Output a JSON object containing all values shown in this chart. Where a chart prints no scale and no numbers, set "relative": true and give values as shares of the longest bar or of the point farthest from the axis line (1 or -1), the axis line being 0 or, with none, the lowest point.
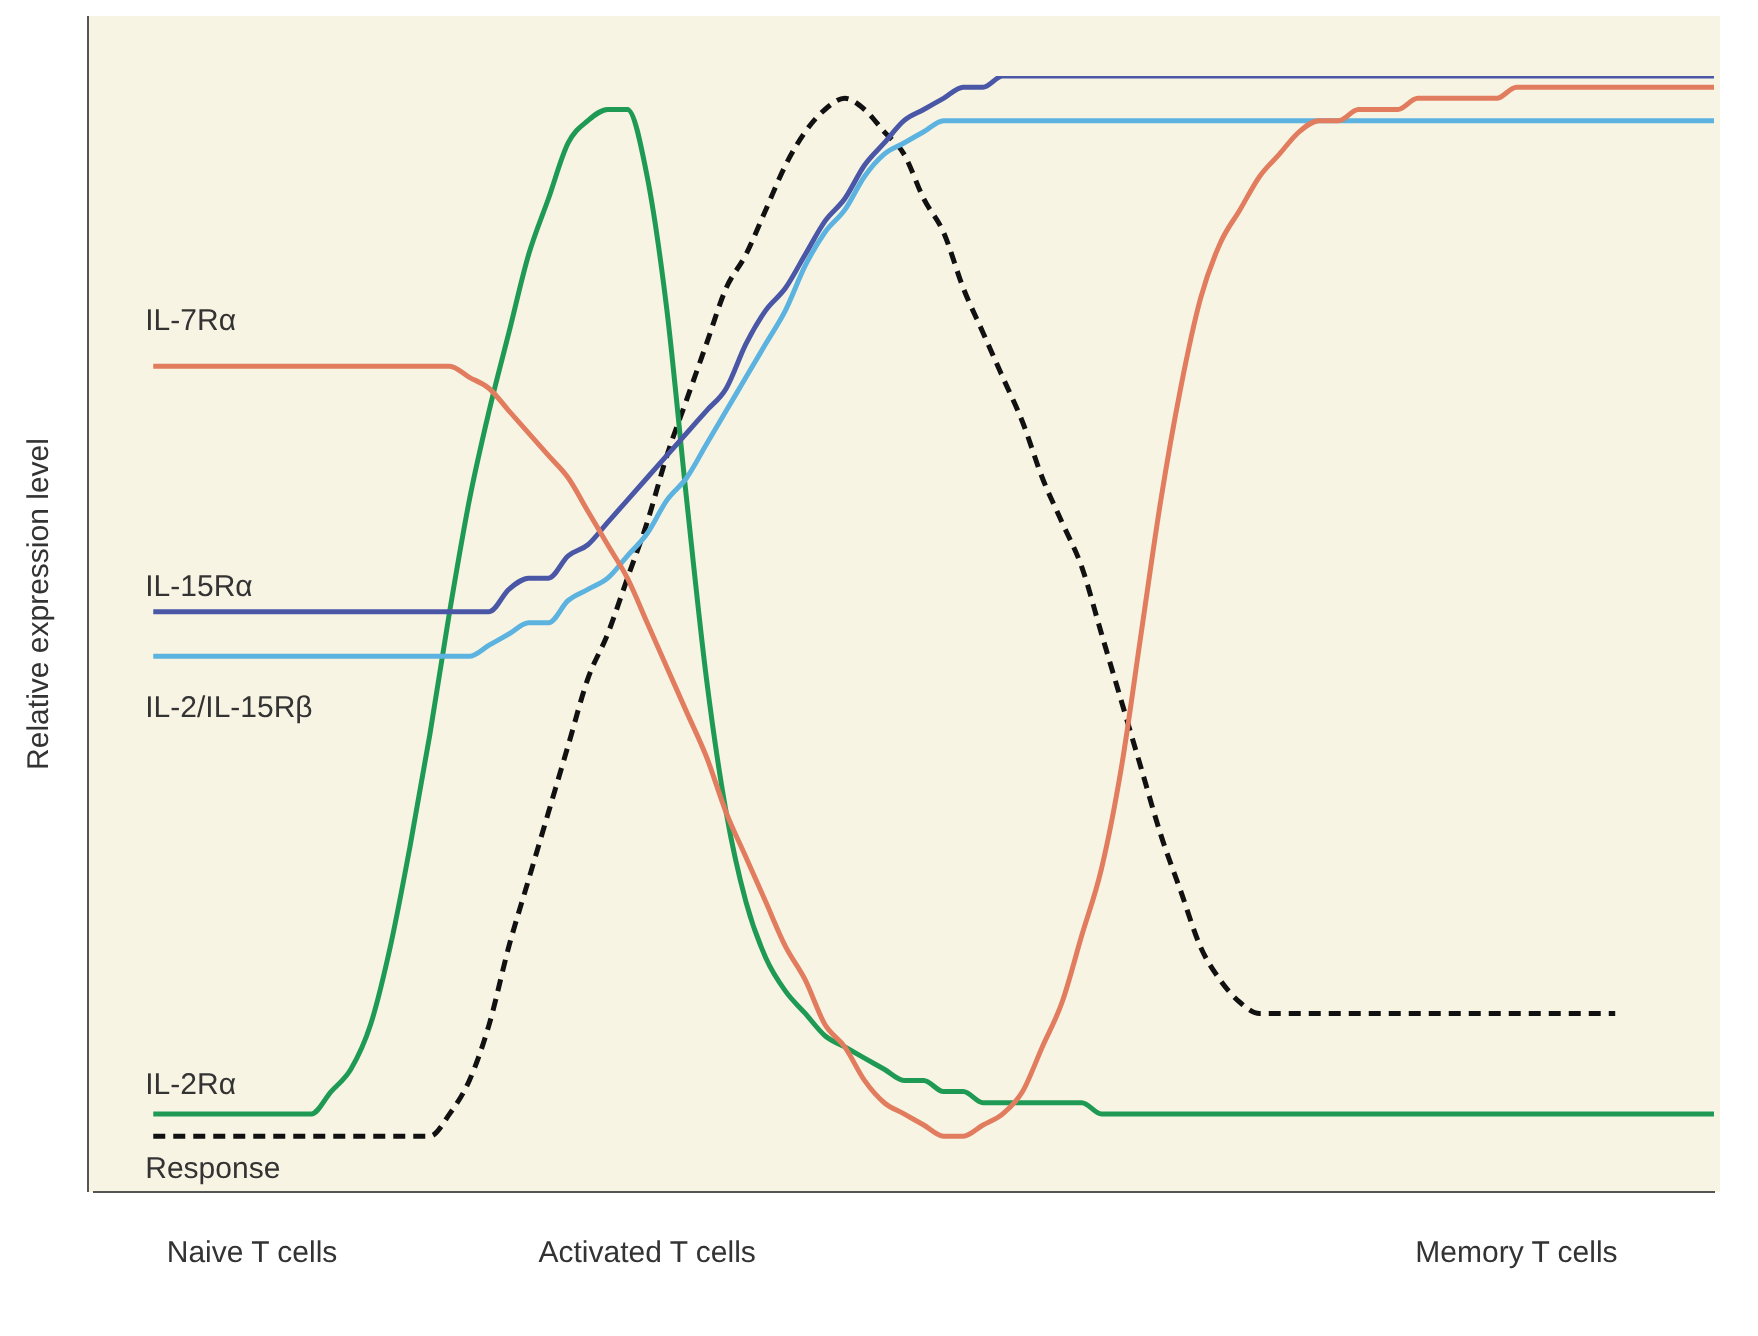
{
  "chart_data": {
    "type": "line",
    "relative": true,
    "ylabel": "Relative expression level",
    "legend": false,
    "grid": false,
    "marker": "none",
    "categories": [
      null,
      null,
      null,
      null,
      null,
      null,
      null,
      null,
      "Naive T cells",
      null,
      null,
      null,
      null,
      null,
      null,
      null,
      null,
      null,
      null,
      null,
      null,
      null,
      null,
      null,
      null,
      null,
      null,
      null,
      "Activated T cells",
      null,
      null,
      null,
      null,
      null,
      null,
      null,
      null,
      null,
      null,
      null,
      null,
      null,
      null,
      null,
      null,
      null,
      null,
      null,
      null,
      null,
      null,
      null,
      null,
      null,
      null,
      null,
      null,
      null,
      null,
      null,
      null,
      null,
      null,
      null,
      null,
      null,
      null,
      null,
      null,
      null,
      null,
      null,
      "Memory T cells",
      null,
      null,
      null,
      null,
      null,
      null,
      null,
      null,
      null,
      null
    ],
    "series": [
      {
        "name": "IL-7Rα",
        "color": "#e27c5e",
        "line_style": "solid",
        "values": [
          null,
          null,
          null,
          0.74,
          0.74,
          0.74,
          0.74,
          0.74,
          0.74,
          0.74,
          0.74,
          0.74,
          0.74,
          0.74,
          0.74,
          0.74,
          0.74,
          0.74,
          0.74,
          0.73,
          0.72,
          0.7,
          0.68,
          0.66,
          0.64,
          0.61,
          0.58,
          0.55,
          0.51,
          0.47,
          0.43,
          0.39,
          0.34,
          0.3,
          0.26,
          0.22,
          0.19,
          0.15,
          0.13,
          0.1,
          0.08,
          0.07,
          0.06,
          0.05,
          0.05,
          0.06,
          0.07,
          0.09,
          0.13,
          0.17,
          0.23,
          0.29,
          0.38,
          0.5,
          0.62,
          0.72,
          0.8,
          0.85,
          0.88,
          0.91,
          0.93,
          0.95,
          0.96,
          0.96,
          0.97,
          0.97,
          0.97,
          0.98,
          0.98,
          0.98,
          0.98,
          0.98,
          0.99,
          0.99,
          0.99,
          0.99,
          0.99,
          0.99,
          0.99,
          0.99,
          0.99,
          0.99,
          0.99
        ]
      },
      {
        "name": "IL-15Rα",
        "color": "#4a57a6",
        "line_style": "solid",
        "values": [
          null,
          null,
          null,
          0.52,
          0.52,
          0.52,
          0.52,
          0.52,
          0.52,
          0.52,
          0.52,
          0.52,
          0.52,
          0.52,
          0.52,
          0.52,
          0.52,
          0.52,
          0.52,
          0.52,
          0.52,
          0.54,
          0.55,
          0.55,
          0.57,
          0.58,
          0.6,
          0.62,
          0.64,
          0.66,
          0.68,
          0.7,
          0.72,
          0.76,
          0.79,
          0.81,
          0.84,
          0.87,
          0.89,
          0.92,
          0.94,
          0.96,
          0.97,
          0.98,
          0.99,
          0.99,
          1.0,
          1.0,
          1.0,
          1.0,
          1.0,
          1.0,
          1.0,
          1.0,
          1.0,
          1.0,
          1.0,
          1.0,
          1.0,
          1.0,
          1.0,
          1.0,
          1.0,
          1.0,
          1.0,
          1.0,
          1.0,
          1.0,
          1.0,
          1.0,
          1.0,
          1.0,
          1.0,
          1.0,
          1.0,
          1.0,
          1.0,
          1.0,
          1.0,
          1.0,
          1.0,
          1.0,
          1.0
        ]
      },
      {
        "name": "IL-2/IL-15Rβ",
        "color": "#5cb3df",
        "line_style": "solid",
        "values": [
          null,
          null,
          null,
          0.48,
          0.48,
          0.48,
          0.48,
          0.48,
          0.48,
          0.48,
          0.48,
          0.48,
          0.48,
          0.48,
          0.48,
          0.48,
          0.48,
          0.48,
          0.48,
          0.48,
          0.49,
          0.5,
          0.51,
          0.51,
          0.53,
          0.54,
          0.55,
          0.57,
          0.59,
          0.62,
          0.64,
          0.67,
          0.7,
          0.73,
          0.76,
          0.79,
          0.83,
          0.86,
          0.88,
          0.91,
          0.93,
          0.94,
          0.95,
          0.96,
          0.96,
          0.96,
          0.96,
          0.96,
          0.96,
          0.96,
          0.96,
          0.96,
          0.96,
          0.96,
          0.96,
          0.96,
          0.96,
          0.96,
          0.96,
          0.96,
          0.96,
          0.96,
          0.96,
          0.96,
          0.96,
          0.96,
          0.96,
          0.96,
          0.96,
          0.96,
          0.96,
          0.96,
          0.96,
          0.96,
          0.96,
          0.96,
          0.96,
          0.96,
          0.96,
          0.96,
          0.96,
          0.96,
          0.96
        ]
      },
      {
        "name": "IL-2Rα",
        "color": "#1f9a55",
        "line_style": "solid",
        "values": [
          null,
          null,
          null,
          0.07,
          0.07,
          0.07,
          0.07,
          0.07,
          0.07,
          0.07,
          0.07,
          0.07,
          0.09,
          0.11,
          0.15,
          0.22,
          0.31,
          0.41,
          0.52,
          0.62,
          0.7,
          0.77,
          0.84,
          0.89,
          0.94,
          0.96,
          0.97,
          0.97,
          0.91,
          0.79,
          0.62,
          0.46,
          0.34,
          0.26,
          0.21,
          0.18,
          0.16,
          0.14,
          0.13,
          0.12,
          0.11,
          0.1,
          0.1,
          0.09,
          0.09,
          0.08,
          0.08,
          0.08,
          0.08,
          0.08,
          0.08,
          0.07,
          0.07,
          0.07,
          0.07,
          0.07,
          0.07,
          0.07,
          0.07,
          0.07,
          0.07,
          0.07,
          0.07,
          0.07,
          0.07,
          0.07,
          0.07,
          0.07,
          0.07,
          0.07,
          0.07,
          0.07,
          0.07,
          0.07,
          0.07,
          0.07,
          0.07,
          0.07,
          0.07,
          0.07,
          0.07,
          0.07,
          0.07
        ]
      },
      {
        "name": "Response",
        "color": "#111111",
        "line_style": "dashed",
        "values": [
          null,
          null,
          null,
          0.05,
          0.05,
          0.05,
          0.05,
          0.05,
          0.05,
          0.05,
          0.05,
          0.05,
          0.05,
          0.05,
          0.05,
          0.05,
          0.05,
          0.05,
          0.07,
          0.1,
          0.15,
          0.22,
          0.28,
          0.34,
          0.4,
          0.46,
          0.5,
          0.55,
          0.6,
          0.66,
          0.71,
          0.76,
          0.81,
          0.84,
          0.88,
          0.92,
          0.95,
          0.97,
          0.98,
          0.97,
          0.95,
          0.93,
          0.89,
          0.86,
          0.81,
          0.77,
          0.73,
          0.69,
          0.64,
          0.6,
          0.56,
          0.5,
          0.44,
          0.38,
          0.32,
          0.27,
          0.22,
          0.19,
          0.17,
          0.16,
          0.16,
          0.16,
          0.16,
          0.16,
          0.16,
          0.16,
          0.16,
          0.16,
          0.16,
          0.16,
          0.16,
          0.16,
          0.16,
          0.16,
          0.16,
          0.16,
          0.16,
          0.16,
          null,
          null,
          null,
          null,
          null
        ]
      }
    ]
  }
}
